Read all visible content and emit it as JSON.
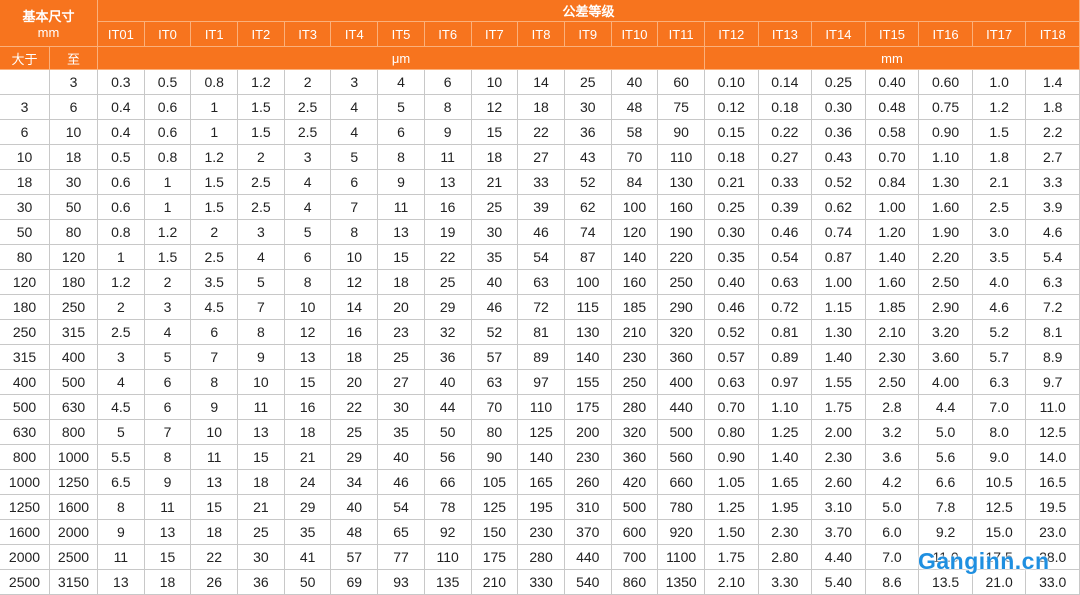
{
  "header": {
    "size_label": "基本尺寸",
    "size_unit": "mm",
    "grade_label": "公差等级",
    "grades": [
      "IT01",
      "IT0",
      "IT1",
      "IT2",
      "IT3",
      "IT4",
      "IT5",
      "IT6",
      "IT7",
      "IT8",
      "IT9",
      "IT10",
      "IT11",
      "IT12",
      "IT13",
      "IT14",
      "IT15",
      "IT16",
      "IT17",
      "IT18"
    ],
    "from_label": "大于",
    "to_label": "至",
    "unit_um": "μm",
    "unit_mm": "mm"
  },
  "rows": [
    [
      null,
      "3",
      "0.3",
      "0.5",
      "0.8",
      "1.2",
      "2",
      "3",
      "4",
      "6",
      "10",
      "14",
      "25",
      "40",
      "60",
      "0.10",
      "0.14",
      "0.25",
      "0.40",
      "0.60",
      "1.0",
      "1.4"
    ],
    [
      "3",
      "6",
      "0.4",
      "0.6",
      "1",
      "1.5",
      "2.5",
      "4",
      "5",
      "8",
      "12",
      "18",
      "30",
      "48",
      "75",
      "0.12",
      "0.18",
      "0.30",
      "0.48",
      "0.75",
      "1.2",
      "1.8"
    ],
    [
      "6",
      "10",
      "0.4",
      "0.6",
      "1",
      "1.5",
      "2.5",
      "4",
      "6",
      "9",
      "15",
      "22",
      "36",
      "58",
      "90",
      "0.15",
      "0.22",
      "0.36",
      "0.58",
      "0.90",
      "1.5",
      "2.2"
    ],
    [
      "10",
      "18",
      "0.5",
      "0.8",
      "1.2",
      "2",
      "3",
      "5",
      "8",
      "11",
      "18",
      "27",
      "43",
      "70",
      "110",
      "0.18",
      "0.27",
      "0.43",
      "0.70",
      "1.10",
      "1.8",
      "2.7"
    ],
    [
      "18",
      "30",
      "0.6",
      "1",
      "1.5",
      "2.5",
      "4",
      "6",
      "9",
      "13",
      "21",
      "33",
      "52",
      "84",
      "130",
      "0.21",
      "0.33",
      "0.52",
      "0.84",
      "1.30",
      "2.1",
      "3.3"
    ],
    [
      "30",
      "50",
      "0.6",
      "1",
      "1.5",
      "2.5",
      "4",
      "7",
      "11",
      "16",
      "25",
      "39",
      "62",
      "100",
      "160",
      "0.25",
      "0.39",
      "0.62",
      "1.00",
      "1.60",
      "2.5",
      "3.9"
    ],
    [
      "50",
      "80",
      "0.8",
      "1.2",
      "2",
      "3",
      "5",
      "8",
      "13",
      "19",
      "30",
      "46",
      "74",
      "120",
      "190",
      "0.30",
      "0.46",
      "0.74",
      "1.20",
      "1.90",
      "3.0",
      "4.6"
    ],
    [
      "80",
      "120",
      "1",
      "1.5",
      "2.5",
      "4",
      "6",
      "10",
      "15",
      "22",
      "35",
      "54",
      "87",
      "140",
      "220",
      "0.35",
      "0.54",
      "0.87",
      "1.40",
      "2.20",
      "3.5",
      "5.4"
    ],
    [
      "120",
      "180",
      "1.2",
      "2",
      "3.5",
      "5",
      "8",
      "12",
      "18",
      "25",
      "40",
      "63",
      "100",
      "160",
      "250",
      "0.40",
      "0.63",
      "1.00",
      "1.60",
      "2.50",
      "4.0",
      "6.3"
    ],
    [
      "180",
      "250",
      "2",
      "3",
      "4.5",
      "7",
      "10",
      "14",
      "20",
      "29",
      "46",
      "72",
      "115",
      "185",
      "290",
      "0.46",
      "0.72",
      "1.15",
      "1.85",
      "2.90",
      "4.6",
      "7.2"
    ],
    [
      "250",
      "315",
      "2.5",
      "4",
      "6",
      "8",
      "12",
      "16",
      "23",
      "32",
      "52",
      "81",
      "130",
      "210",
      "320",
      "0.52",
      "0.81",
      "1.30",
      "2.10",
      "3.20",
      "5.2",
      "8.1"
    ],
    [
      "315",
      "400",
      "3",
      "5",
      "7",
      "9",
      "13",
      "18",
      "25",
      "36",
      "57",
      "89",
      "140",
      "230",
      "360",
      "0.57",
      "0.89",
      "1.40",
      "2.30",
      "3.60",
      "5.7",
      "8.9"
    ],
    [
      "400",
      "500",
      "4",
      "6",
      "8",
      "10",
      "15",
      "20",
      "27",
      "40",
      "63",
      "97",
      "155",
      "250",
      "400",
      "0.63",
      "0.97",
      "1.55",
      "2.50",
      "4.00",
      "6.3",
      "9.7"
    ],
    [
      "500",
      "630",
      "4.5",
      "6",
      "9",
      "11",
      "16",
      "22",
      "30",
      "44",
      "70",
      "110",
      "175",
      "280",
      "440",
      "0.70",
      "1.10",
      "1.75",
      "2.8",
      "4.4",
      "7.0",
      "11.0"
    ],
    [
      "630",
      "800",
      "5",
      "7",
      "10",
      "13",
      "18",
      "25",
      "35",
      "50",
      "80",
      "125",
      "200",
      "320",
      "500",
      "0.80",
      "1.25",
      "2.00",
      "3.2",
      "5.0",
      "8.0",
      "12.5"
    ],
    [
      "800",
      "1000",
      "5.5",
      "8",
      "11",
      "15",
      "21",
      "29",
      "40",
      "56",
      "90",
      "140",
      "230",
      "360",
      "560",
      "0.90",
      "1.40",
      "2.30",
      "3.6",
      "5.6",
      "9.0",
      "14.0"
    ],
    [
      "1000",
      "1250",
      "6.5",
      "9",
      "13",
      "18",
      "24",
      "34",
      "46",
      "66",
      "105",
      "165",
      "260",
      "420",
      "660",
      "1.05",
      "1.65",
      "2.60",
      "4.2",
      "6.6",
      "10.5",
      "16.5"
    ],
    [
      "1250",
      "1600",
      "8",
      "11",
      "15",
      "21",
      "29",
      "40",
      "54",
      "78",
      "125",
      "195",
      "310",
      "500",
      "780",
      "1.25",
      "1.95",
      "3.10",
      "5.0",
      "7.8",
      "12.5",
      "19.5"
    ],
    [
      "1600",
      "2000",
      "9",
      "13",
      "18",
      "25",
      "35",
      "48",
      "65",
      "92",
      "150",
      "230",
      "370",
      "600",
      "920",
      "1.50",
      "2.30",
      "3.70",
      "6.0",
      "9.2",
      "15.0",
      "23.0"
    ],
    [
      "2000",
      "2500",
      "11",
      "15",
      "22",
      "30",
      "41",
      "57",
      "77",
      "110",
      "175",
      "280",
      "440",
      "700",
      "1100",
      "1.75",
      "2.80",
      "4.40",
      "7.0",
      "11.0",
      "17.5",
      "28.0"
    ],
    [
      "2500",
      "3150",
      "13",
      "18",
      "26",
      "36",
      "50",
      "69",
      "93",
      "135",
      "210",
      "330",
      "540",
      "860",
      "1350",
      "2.10",
      "3.30",
      "5.40",
      "8.6",
      "13.5",
      "21.0",
      "33.0"
    ]
  ],
  "watermark": "Ganginn.cn"
}
